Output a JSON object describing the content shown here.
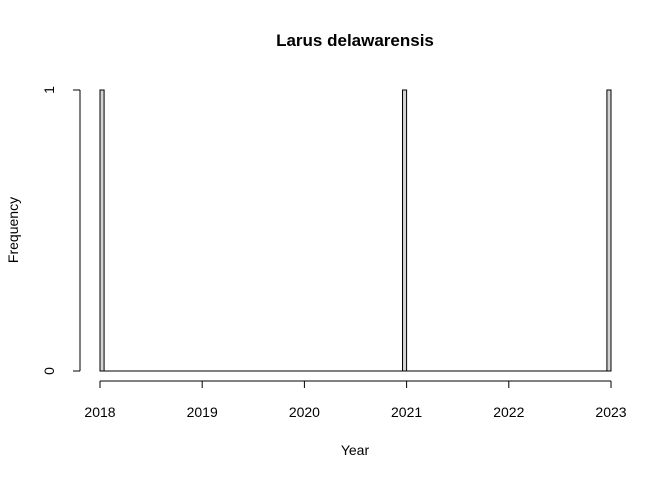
{
  "chart_data": {
    "type": "bar",
    "title": "Larus delawarensis",
    "xlabel": "Year",
    "ylabel": "Frequency",
    "xlim": [
      2018,
      2023
    ],
    "ylim": [
      0,
      1
    ],
    "x_ticks": [
      "2018",
      "2019",
      "2020",
      "2021",
      "2022",
      "2023"
    ],
    "y_ticks": [
      "0",
      "1"
    ],
    "bin_width": 0.04,
    "bins": [
      {
        "start": 2018.0,
        "end": 2018.04,
        "value": 1
      },
      {
        "start": 2020.96,
        "end": 2021.0,
        "value": 1
      },
      {
        "start": 2022.96,
        "end": 2023.0,
        "value": 1
      }
    ],
    "bar_fill": "#d3d3d3",
    "bar_stroke": "#000000",
    "grid": false
  }
}
